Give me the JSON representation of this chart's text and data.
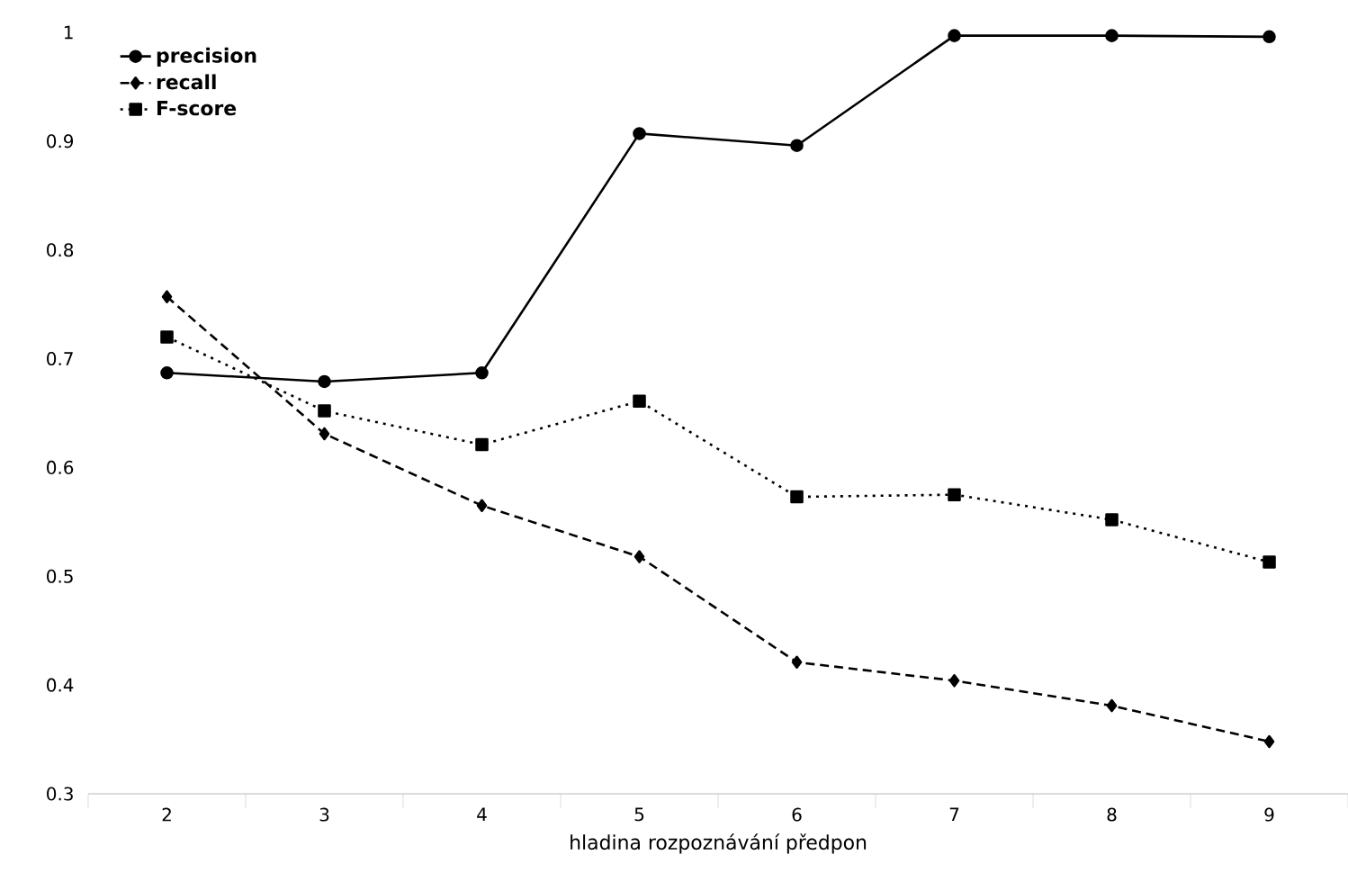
{
  "chart_data": {
    "type": "line",
    "xlabel": "hladina rozpoznávání předpon",
    "categories": [
      "2",
      "3",
      "4",
      "5",
      "6",
      "7",
      "8",
      "9"
    ],
    "ylim": [
      0.3,
      1
    ],
    "yticks": [
      0.3,
      0.4,
      0.5,
      0.6,
      0.7,
      0.8,
      0.9,
      1
    ],
    "grid": false,
    "legend": "top left",
    "series": [
      {
        "name": "precision",
        "color": "#000000",
        "marker": "circle",
        "line_style": "solid",
        "values": [
          0.687,
          0.679,
          0.687,
          0.907,
          0.896,
          0.997,
          0.997,
          0.996
        ]
      },
      {
        "name": "recall",
        "color": "#000000",
        "marker": "diamond",
        "line_style": "dashed",
        "values": [
          0.757,
          0.631,
          0.565,
          0.518,
          0.421,
          0.404,
          0.381,
          0.348
        ]
      },
      {
        "name": "F-score",
        "color": "#000000",
        "marker": "square",
        "line_style": "dotted",
        "values": [
          0.72,
          0.652,
          0.621,
          0.661,
          0.573,
          0.575,
          0.552,
          0.513
        ]
      }
    ]
  }
}
